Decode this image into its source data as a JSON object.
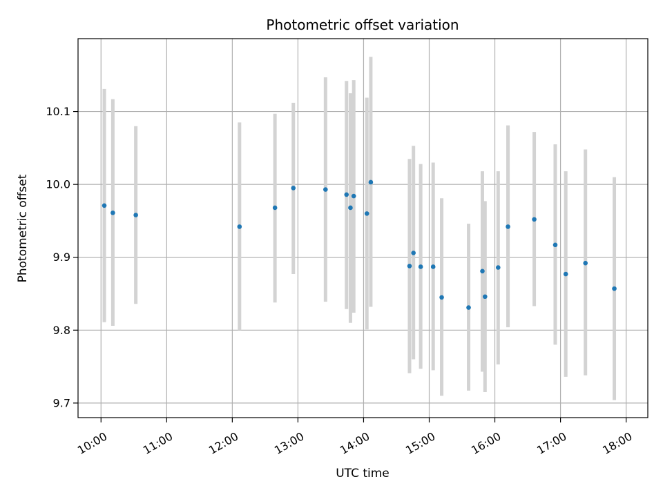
{
  "chart_data": {
    "type": "scatter",
    "title": "Photometric offset variation",
    "xlabel": "UTC time",
    "ylabel": "Photometric offset",
    "x_unit": "hour (UTC)",
    "xlim": [
      9.65,
      18.33
    ],
    "ylim": [
      9.68,
      10.2
    ],
    "grid": true,
    "x_ticks": [
      {
        "value": 10,
        "label": "10:00"
      },
      {
        "value": 11,
        "label": "11:00"
      },
      {
        "value": 12,
        "label": "12:00"
      },
      {
        "value": 13,
        "label": "13:00"
      },
      {
        "value": 14,
        "label": "14:00"
      },
      {
        "value": 15,
        "label": "15:00"
      },
      {
        "value": 16,
        "label": "16:00"
      },
      {
        "value": 17,
        "label": "17:00"
      },
      {
        "value": 18,
        "label": "18:00"
      }
    ],
    "y_ticks": [
      {
        "value": 9.7,
        "label": "9.7"
      },
      {
        "value": 9.8,
        "label": "9.8"
      },
      {
        "value": 9.9,
        "label": "9.9"
      },
      {
        "value": 10.0,
        "label": "10.0"
      },
      {
        "value": 10.1,
        "label": "10.1"
      }
    ],
    "colors": {
      "point": "#1f77b4",
      "errorbar": "#d3d3d3",
      "grid": "#b0b0b0"
    },
    "points": [
      {
        "x": 10.05,
        "y": 9.971,
        "ylow": 9.811,
        "yhigh": 10.131
      },
      {
        "x": 10.18,
        "y": 9.961,
        "ylow": 9.806,
        "yhigh": 10.117
      },
      {
        "x": 10.53,
        "y": 9.958,
        "ylow": 9.836,
        "yhigh": 10.08
      },
      {
        "x": 12.11,
        "y": 9.942,
        "ylow": 9.8,
        "yhigh": 10.085
      },
      {
        "x": 12.65,
        "y": 9.968,
        "ylow": 9.838,
        "yhigh": 10.097
      },
      {
        "x": 12.93,
        "y": 9.995,
        "ylow": 9.877,
        "yhigh": 10.112
      },
      {
        "x": 13.42,
        "y": 9.993,
        "ylow": 9.839,
        "yhigh": 10.147
      },
      {
        "x": 13.74,
        "y": 9.986,
        "ylow": 9.829,
        "yhigh": 10.142
      },
      {
        "x": 13.8,
        "y": 9.968,
        "ylow": 9.81,
        "yhigh": 10.125
      },
      {
        "x": 13.85,
        "y": 9.984,
        "ylow": 9.824,
        "yhigh": 10.143
      },
      {
        "x": 14.05,
        "y": 9.96,
        "ylow": 9.801,
        "yhigh": 10.119
      },
      {
        "x": 14.11,
        "y": 10.003,
        "ylow": 9.832,
        "yhigh": 10.175
      },
      {
        "x": 14.7,
        "y": 9.888,
        "ylow": 9.741,
        "yhigh": 10.035
      },
      {
        "x": 14.76,
        "y": 9.906,
        "ylow": 9.76,
        "yhigh": 10.053
      },
      {
        "x": 14.87,
        "y": 9.887,
        "ylow": 9.747,
        "yhigh": 10.028
      },
      {
        "x": 15.06,
        "y": 9.887,
        "ylow": 9.745,
        "yhigh": 10.03
      },
      {
        "x": 15.19,
        "y": 9.845,
        "ylow": 9.71,
        "yhigh": 9.981
      },
      {
        "x": 15.6,
        "y": 9.831,
        "ylow": 9.717,
        "yhigh": 9.946
      },
      {
        "x": 15.81,
        "y": 9.881,
        "ylow": 9.743,
        "yhigh": 10.018
      },
      {
        "x": 15.85,
        "y": 9.846,
        "ylow": 9.715,
        "yhigh": 9.977
      },
      {
        "x": 16.05,
        "y": 9.886,
        "ylow": 9.753,
        "yhigh": 10.018
      },
      {
        "x": 16.2,
        "y": 9.942,
        "ylow": 9.804,
        "yhigh": 10.081
      },
      {
        "x": 16.6,
        "y": 9.952,
        "ylow": 9.833,
        "yhigh": 10.072
      },
      {
        "x": 16.92,
        "y": 9.917,
        "ylow": 9.78,
        "yhigh": 10.055
      },
      {
        "x": 17.08,
        "y": 9.877,
        "ylow": 9.736,
        "yhigh": 10.018
      },
      {
        "x": 17.38,
        "y": 9.892,
        "ylow": 9.738,
        "yhigh": 10.048
      },
      {
        "x": 17.82,
        "y": 9.857,
        "ylow": 9.704,
        "yhigh": 10.01
      }
    ]
  }
}
